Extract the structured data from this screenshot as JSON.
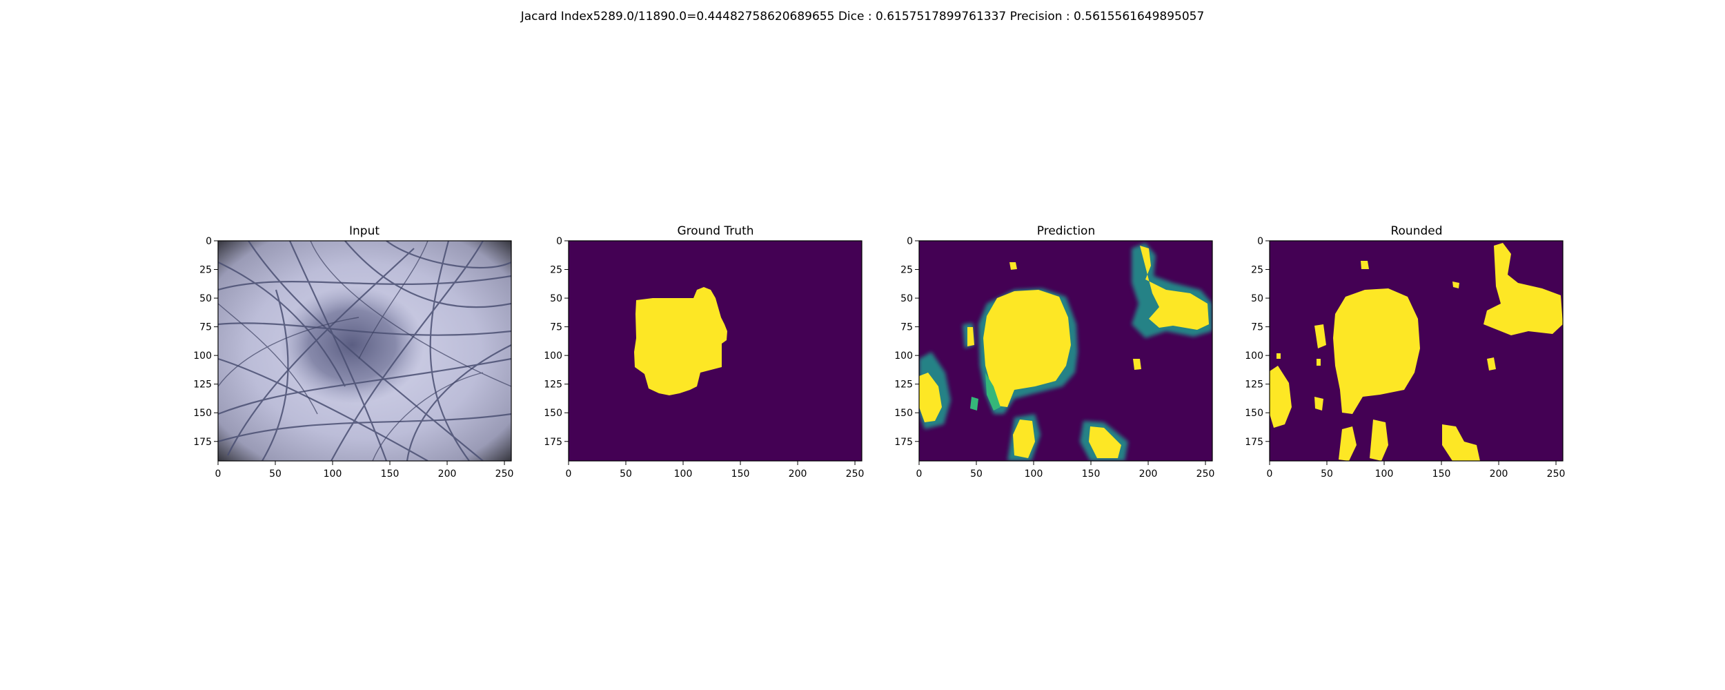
{
  "figure": {
    "suptitle": "Jacard Index5289.0/11890.0=0.44482758620689655 Dice : 0.6157517899761337 Precision : 0.5615561649895057"
  },
  "chart_data": [
    {
      "type": "image",
      "title": "Input",
      "xlim": [
        0,
        256
      ],
      "ylim": [
        192,
        0
      ],
      "xticks": [
        0,
        50,
        100,
        150,
        200,
        250
      ],
      "yticks": [
        0,
        25,
        50,
        75,
        100,
        125,
        150,
        175
      ],
      "colormap": "rgb"
    },
    {
      "type": "heatmap",
      "title": "Ground Truth",
      "xlim": [
        0,
        256
      ],
      "ylim": [
        192,
        0
      ],
      "xticks": [
        0,
        50,
        100,
        150,
        200,
        250
      ],
      "yticks": [
        0,
        25,
        50,
        75,
        100,
        125,
        150,
        175
      ],
      "colormap": "viridis",
      "colors": {
        "low": "#440154",
        "mid": "#21918c",
        "high": "#fde725"
      }
    },
    {
      "type": "heatmap",
      "title": "Prediction",
      "xlim": [
        0,
        256
      ],
      "ylim": [
        192,
        0
      ],
      "xticks": [
        0,
        50,
        100,
        150,
        200,
        250
      ],
      "yticks": [
        0,
        25,
        50,
        75,
        100,
        125,
        150,
        175
      ],
      "colormap": "viridis",
      "colors": {
        "low": "#440154",
        "mid": "#21918c",
        "high": "#fde725"
      }
    },
    {
      "type": "heatmap",
      "title": "Rounded",
      "xlim": [
        0,
        256
      ],
      "ylim": [
        192,
        0
      ],
      "xticks": [
        0,
        50,
        100,
        150,
        200,
        250
      ],
      "yticks": [
        0,
        25,
        50,
        75,
        100,
        125,
        150,
        175
      ],
      "colormap": "viridis",
      "colors": {
        "low": "#440154",
        "high": "#fde725"
      }
    }
  ]
}
